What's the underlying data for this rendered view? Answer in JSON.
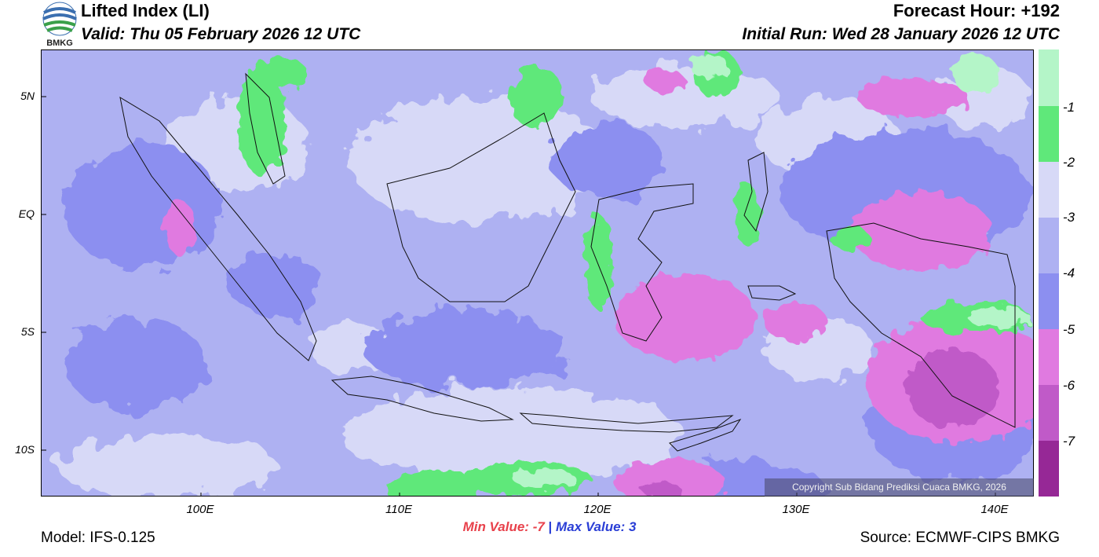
{
  "header": {
    "title": "Lifted Index (LI)",
    "valid": "Valid: Thu 05 February 2026 12 UTC",
    "forecast_hour": "Forecast Hour: +192",
    "initial_run": "Initial Run: Wed 28 January 2026 12 UTC",
    "logo_text": "BMKG"
  },
  "map": {
    "lat_labels": [
      "5N",
      "EQ",
      "5S",
      "10S"
    ],
    "lon_labels": [
      "100E",
      "110E",
      "120E",
      "130E",
      "140E"
    ],
    "copyright": "Copyright Sub Bidang Prediksi Cuaca BMKG, 2026"
  },
  "colorbar": {
    "labels": [
      "-1",
      "-2",
      "-3",
      "-4",
      "-5",
      "-6",
      "-7"
    ],
    "colors": [
      "#b4f5c8",
      "#5fe87a",
      "#d7d9f7",
      "#aeb1f2",
      "#8c8ff0",
      "#e07ae0",
      "#c05ac8",
      "#962896"
    ]
  },
  "stats": {
    "min_label": "Min Value:",
    "min_value": "-7",
    "separator": "|",
    "max_label": "Max Value:",
    "max_value": "3"
  },
  "footer": {
    "model": "Model: IFS-0.125",
    "source": "Source: ECMWF-CIPS BMKG"
  }
}
